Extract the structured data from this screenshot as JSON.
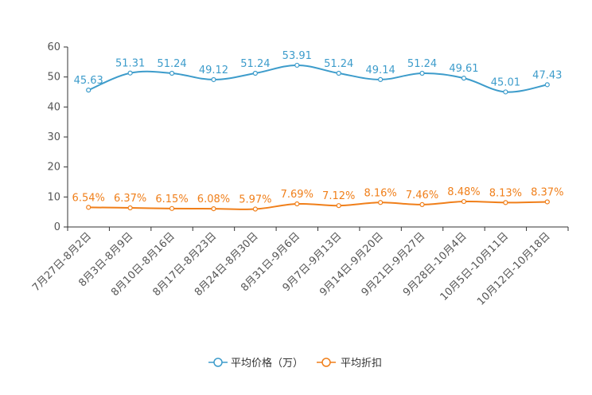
{
  "chart_data": {
    "type": "line",
    "title": "",
    "xlabel": "",
    "ylabel": "",
    "ylim": [
      0,
      60
    ],
    "yticks": [
      0,
      10,
      20,
      30,
      40,
      50,
      60
    ],
    "categories": [
      "7月27日-8月2日",
      "8月3日-8月9日",
      "8月10日-8月16日",
      "8月17日-8月23日",
      "8月24日-8月30日",
      "8月31日-9月6日",
      "9月7日-9月13日",
      "9月14日-9月20日",
      "9月21日-9月27日",
      "9月28日-10月4日",
      "10月5日-10月11日",
      "10月12日-10月18日"
    ],
    "series": [
      {
        "name": "平均价格（万）",
        "color": "#3d9ccb",
        "values": [
          45.63,
          51.31,
          51.24,
          49.12,
          51.24,
          53.91,
          51.24,
          49.14,
          51.24,
          49.61,
          45.01,
          47.43
        ],
        "labels": [
          "45.63",
          "51.31",
          "51.24",
          "49.12",
          "51.24",
          "53.91",
          "51.24",
          "49.14",
          "51.24",
          "49.61",
          "45.01",
          "47.43"
        ]
      },
      {
        "name": "平均折扣",
        "color": "#f07f1a",
        "values": [
          6.54,
          6.37,
          6.15,
          6.08,
          5.97,
          7.69,
          7.12,
          8.16,
          7.46,
          8.48,
          8.13,
          8.37
        ],
        "labels": [
          "6.54%",
          "6.37%",
          "6.15%",
          "6.08%",
          "5.97%",
          "7.69%",
          "7.12%",
          "8.16%",
          "7.46%",
          "8.48%",
          "8.13%",
          "8.37%"
        ]
      }
    ],
    "legend_position": "bottom-center"
  }
}
